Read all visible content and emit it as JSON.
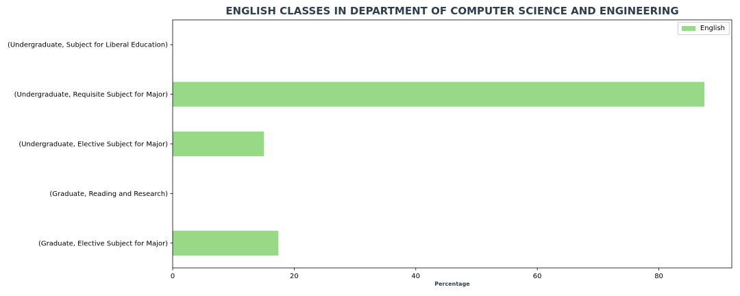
{
  "chart_data": {
    "type": "bar",
    "orientation": "horizontal",
    "title": "ENGLISH CLASSES IN DEPARTMENT OF COMPUTER SCIENCE AND ENGINEERING",
    "xlabel": "Percentage",
    "ylabel": "",
    "categories": [
      "(Undergraduate, Subject for Liberal Education)",
      "(Undergraduate, Requisite Subject for Major)",
      "(Undergraduate, Elective Subject for Major)",
      "(Graduate, Reading and Research)",
      "(Graduate, Elective Subject for Major)"
    ],
    "series": [
      {
        "name": "English",
        "values": [
          0,
          87.5,
          15.0,
          0,
          17.4
        ],
        "color": "#98d988"
      }
    ],
    "xlim": [
      0,
      92
    ],
    "xticks": [
      0,
      20,
      40,
      60,
      80
    ],
    "grid": false,
    "legend": "top-right"
  }
}
